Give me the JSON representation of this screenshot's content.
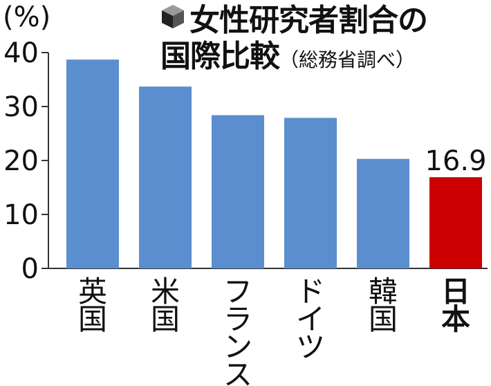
{
  "title": {
    "line1": "女性研究者割合の",
    "line2": "国際比較",
    "source": "（総務省調べ）"
  },
  "unit_label": "(%)",
  "chart_data": {
    "type": "bar",
    "categories": [
      "英国",
      "米国",
      "フランス",
      "ドイツ",
      "韓国",
      "日本"
    ],
    "values": [
      38.7,
      33.7,
      28.4,
      27.9,
      20.3,
      16.9
    ],
    "value_labels": [
      "",
      "",
      "",
      "",
      "",
      "16.9"
    ],
    "bar_colors": [
      "#5b8ecf",
      "#5b8ecf",
      "#5b8ecf",
      "#5b8ecf",
      "#5b8ecf",
      "#cc0000"
    ],
    "highlight_category": "日本",
    "yticks": [
      0,
      10,
      20,
      30,
      40
    ],
    "ylim": [
      0,
      40
    ],
    "grid": false,
    "xlabel": "",
    "ylabel": "(%)"
  }
}
